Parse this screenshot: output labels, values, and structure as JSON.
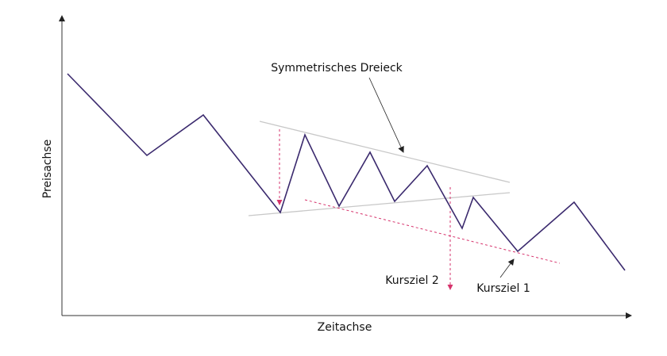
{
  "axes": {
    "x_label": "Zeitachse",
    "y_label": "Preisachse"
  },
  "annotations": {
    "triangle": "Symmetrisches Dreieck",
    "target_2": "Kursziel 2",
    "target_1": "Kursziel 1"
  }
}
